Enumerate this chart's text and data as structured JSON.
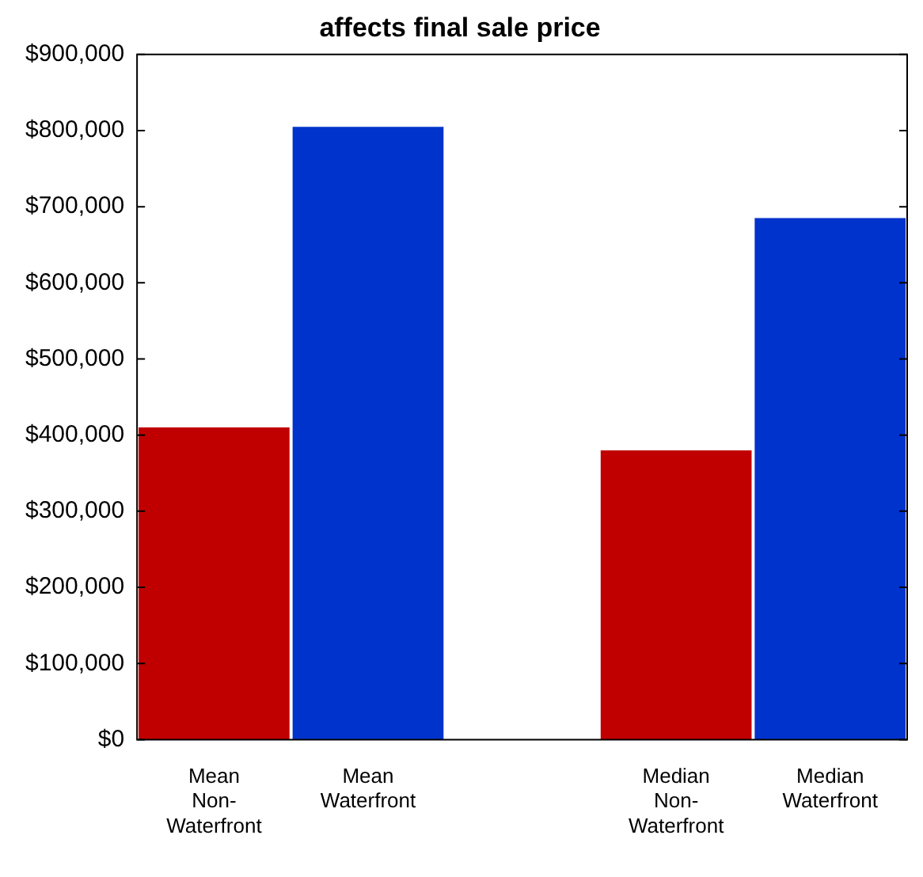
{
  "chart_data": {
    "type": "bar",
    "title": "affects final sale price",
    "categories": [
      "Mean\nNon-\nWaterfront",
      "Mean\nWaterfront",
      null,
      "Median\nNon-\nWaterfront",
      "Median\nWaterfront"
    ],
    "values": [
      410000,
      805000,
      null,
      380000,
      685000
    ],
    "colors": [
      "#c00000",
      "#0033cc",
      "#ffffff",
      "#c00000",
      "#0033cc"
    ],
    "ylim": [
      0,
      900000
    ],
    "yticks": [
      {
        "value": 0,
        "label": "$0"
      },
      {
        "value": 100000,
        "label": "$100,000"
      },
      {
        "value": 200000,
        "label": "$200,000"
      },
      {
        "value": 300000,
        "label": "$300,000"
      },
      {
        "value": 400000,
        "label": "$400,000"
      },
      {
        "value": 500000,
        "label": "$500,000"
      },
      {
        "value": 600000,
        "label": "$600,000"
      },
      {
        "value": 700000,
        "label": "$700,000"
      },
      {
        "value": 800000,
        "label": "$800,000"
      },
      {
        "value": 900000,
        "label": "$900,000"
      }
    ],
    "grid": false,
    "legend": false
  }
}
